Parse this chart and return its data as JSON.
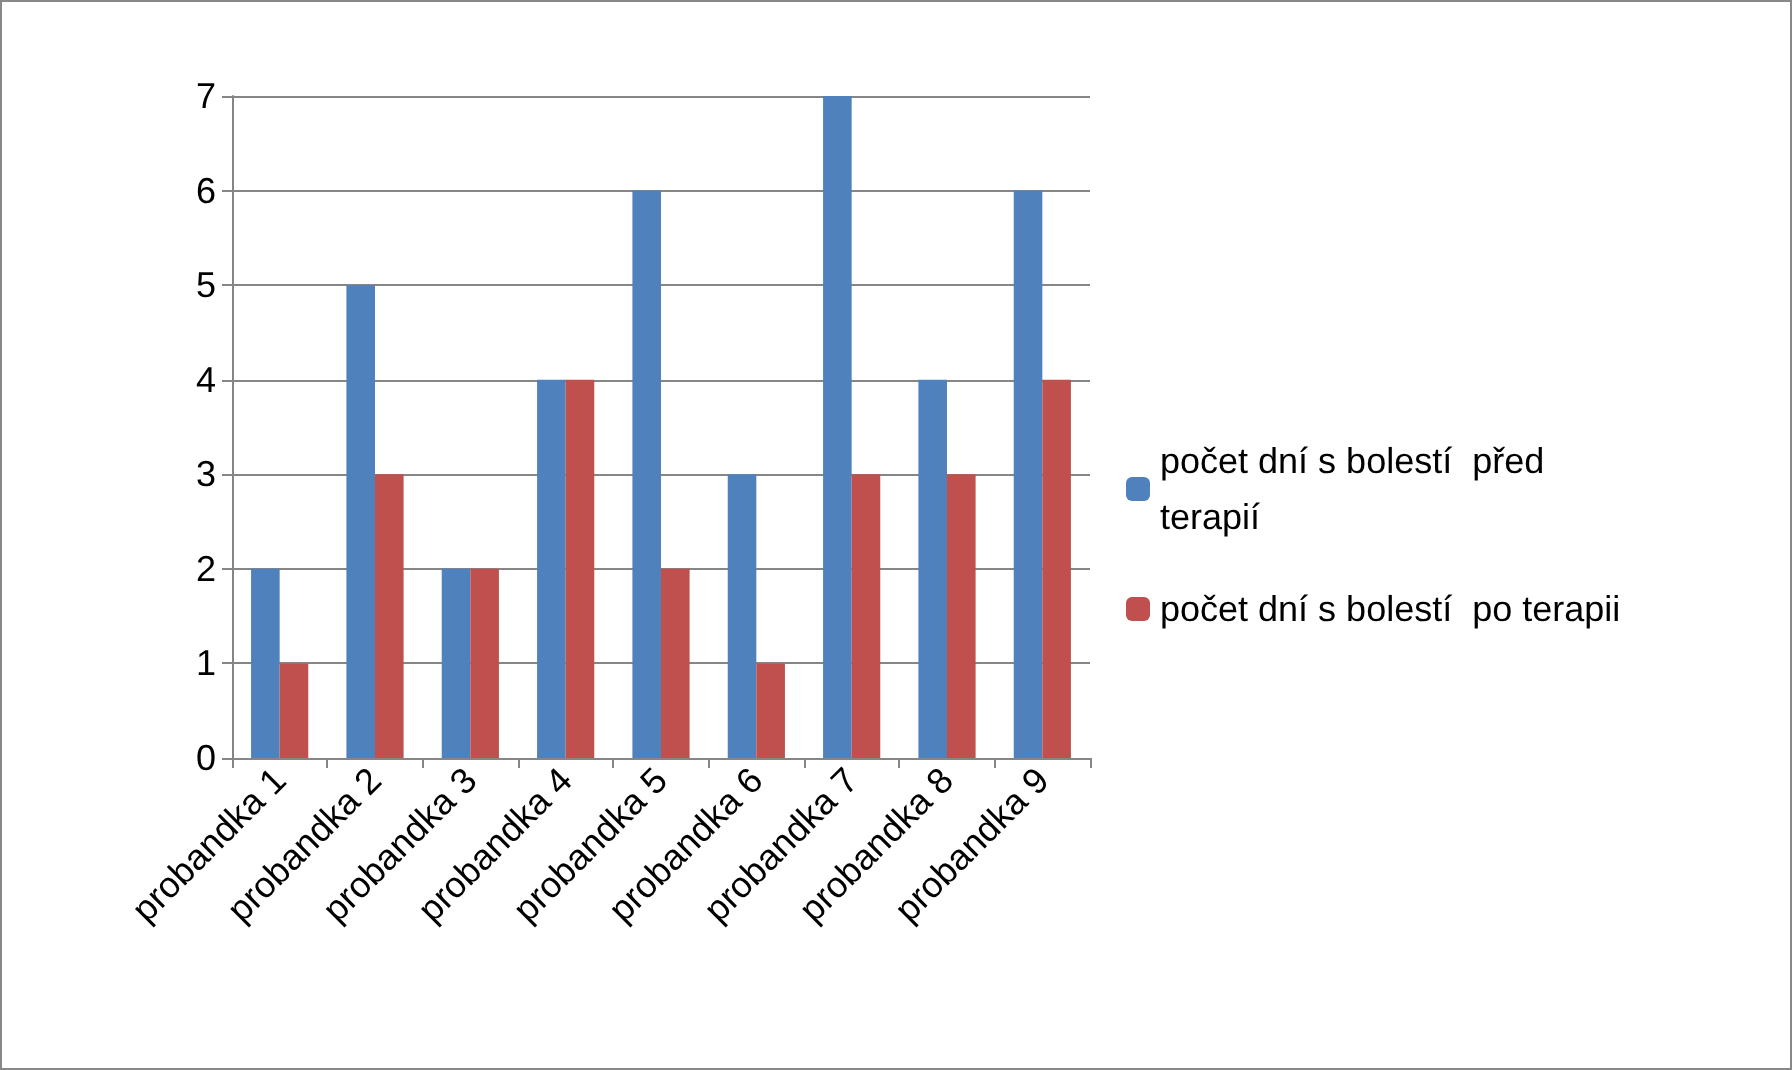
{
  "chart_data": {
    "type": "bar",
    "categories": [
      "probandka 1",
      "probandka 2",
      "probandka 3",
      "probandka 4",
      "probandka 5",
      "probandka 6",
      "probandka 7",
      "probandka 8",
      "probandka 9"
    ],
    "series": [
      {
        "name": "počet dní s bolestí  před terapií",
        "color": "#4f81bd",
        "values": [
          2,
          5,
          2,
          4,
          6,
          3,
          7,
          4,
          6
        ]
      },
      {
        "name": "počet dní s bolestí  po terapii",
        "color": "#c0504d",
        "values": [
          1,
          3,
          2,
          4,
          2,
          1,
          3,
          3,
          4
        ]
      }
    ],
    "ylim": [
      0,
      7
    ],
    "yticks": [
      0,
      1,
      2,
      3,
      4,
      5,
      6,
      7
    ],
    "grid": "y",
    "legend": "right"
  }
}
